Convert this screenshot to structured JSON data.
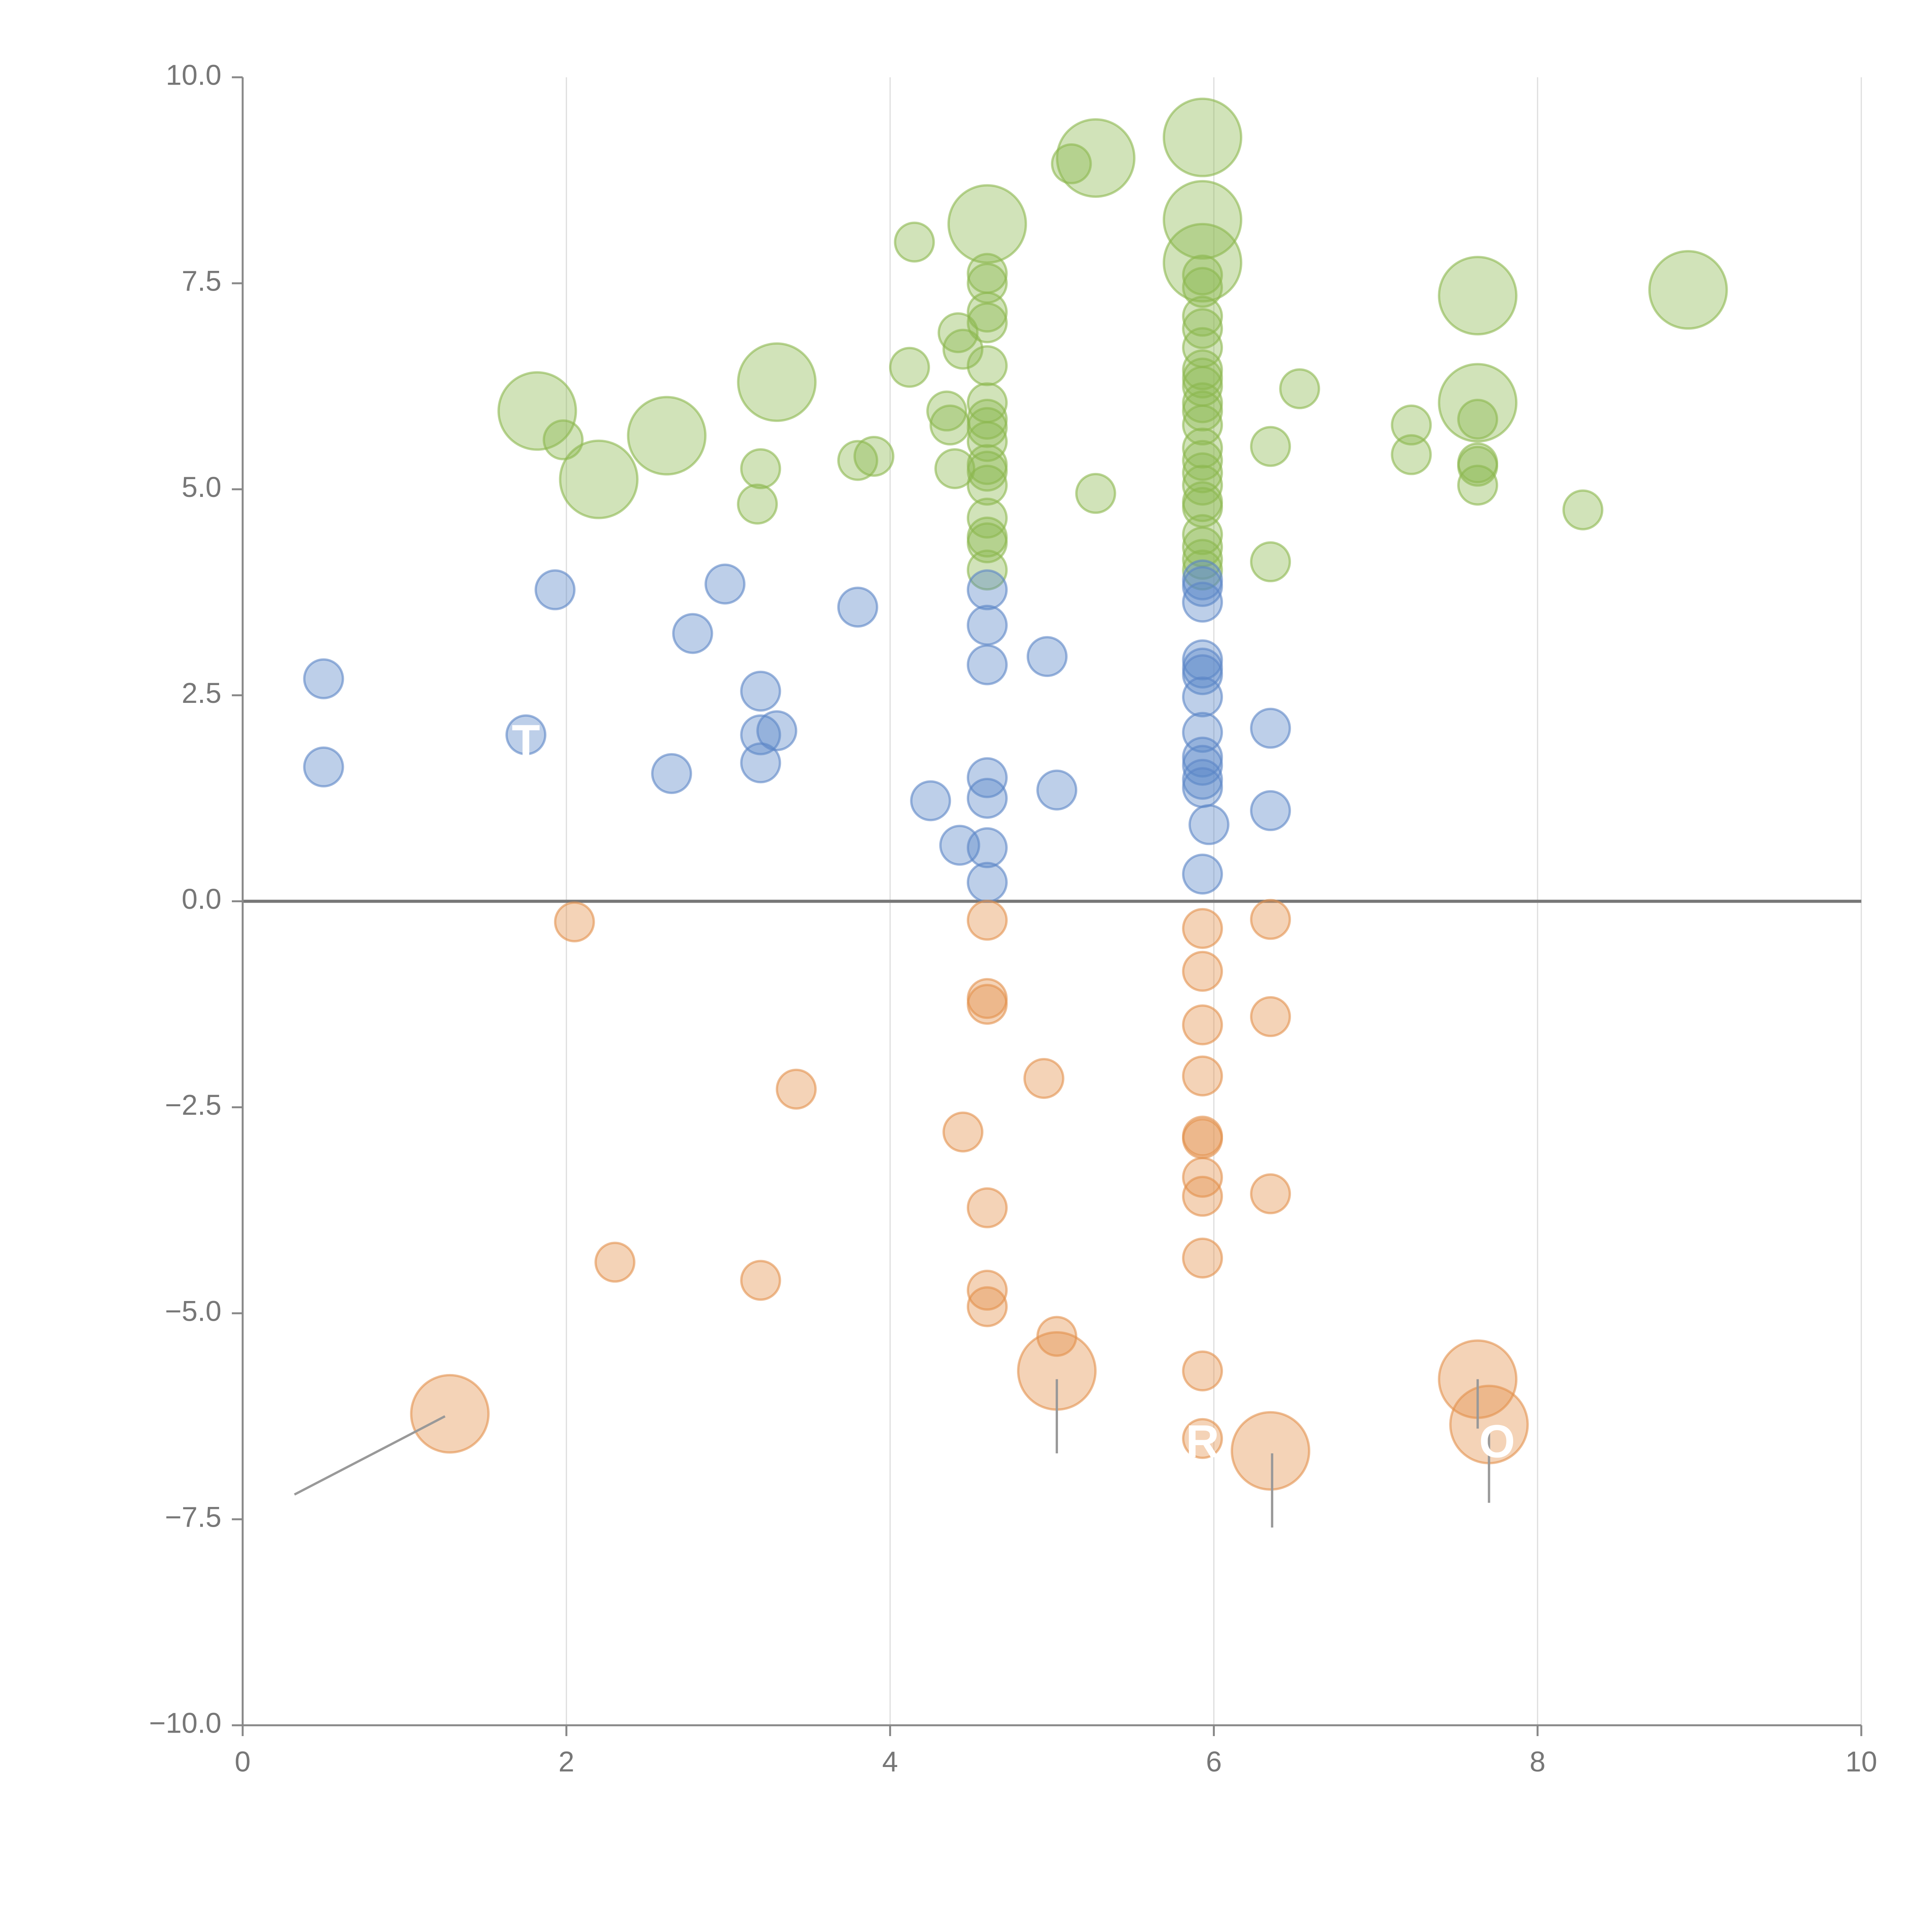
{
  "chart_data": {
    "type": "scatter",
    "title": "",
    "xlabel": "",
    "ylabel": "",
    "xlim": [
      0,
      10
    ],
    "ylim": [
      -10,
      10
    ],
    "x_ticks": [
      0,
      2,
      4,
      6,
      8,
      10
    ],
    "y_ticks": [
      -10,
      -7.5,
      -5,
      -2.5,
      0,
      2.5,
      5,
      7.5,
      10
    ],
    "x_tick_labels": [
      "0",
      "2",
      "4",
      "6",
      "8",
      "10"
    ],
    "y_tick_labels": [
      "−10.0",
      "−7.5",
      "−5.0",
      "−2.5",
      "0.0",
      "2.5",
      "5.0",
      "7.5",
      "10.0"
    ],
    "grid": "vertical",
    "colors": {
      "green": "#8cb84f",
      "blue": "#5b86c7",
      "orange": "#e3914c",
      "axis": "#888888",
      "zero_line": "#777777",
      "grid": "#dddddd"
    },
    "series": [
      {
        "name": "green",
        "color": "#8cb84f",
        "points": [
          {
            "x": 1.82,
            "y": 5.95,
            "size": 3
          },
          {
            "x": 1.98,
            "y": 5.6,
            "size": 1
          },
          {
            "x": 2.2,
            "y": 5.12,
            "size": 3
          },
          {
            "x": 2.62,
            "y": 5.65,
            "size": 3
          },
          {
            "x": 3.2,
            "y": 5.25,
            "size": 1
          },
          {
            "x": 3.18,
            "y": 4.82,
            "size": 1
          },
          {
            "x": 3.3,
            "y": 6.3,
            "size": 3
          },
          {
            "x": 3.8,
            "y": 5.35,
            "size": 1
          },
          {
            "x": 3.9,
            "y": 5.4,
            "size": 1
          },
          {
            "x": 4.12,
            "y": 6.48,
            "size": 1
          },
          {
            "x": 4.15,
            "y": 8.0,
            "size": 1
          },
          {
            "x": 4.35,
            "y": 5.95,
            "size": 1
          },
          {
            "x": 4.37,
            "y": 5.78,
            "size": 1
          },
          {
            "x": 4.4,
            "y": 5.25,
            "size": 1
          },
          {
            "x": 4.42,
            "y": 6.9,
            "size": 1
          },
          {
            "x": 4.45,
            "y": 6.7,
            "size": 1
          },
          {
            "x": 4.6,
            "y": 8.22,
            "size": 3
          },
          {
            "x": 4.6,
            "y": 7.62,
            "size": 1
          },
          {
            "x": 4.6,
            "y": 7.5,
            "size": 1
          },
          {
            "x": 4.6,
            "y": 7.15,
            "size": 1
          },
          {
            "x": 4.6,
            "y": 7.02,
            "size": 1
          },
          {
            "x": 4.6,
            "y": 6.5,
            "size": 1
          },
          {
            "x": 4.6,
            "y": 6.05,
            "size": 1
          },
          {
            "x": 4.6,
            "y": 5.85,
            "size": 1
          },
          {
            "x": 4.6,
            "y": 5.75,
            "size": 1
          },
          {
            "x": 4.6,
            "y": 5.58,
            "size": 1
          },
          {
            "x": 4.6,
            "y": 5.3,
            "size": 1
          },
          {
            "x": 4.6,
            "y": 5.22,
            "size": 1
          },
          {
            "x": 4.6,
            "y": 5.05,
            "size": 1
          },
          {
            "x": 4.6,
            "y": 4.65,
            "size": 1
          },
          {
            "x": 4.6,
            "y": 4.42,
            "size": 1
          },
          {
            "x": 4.6,
            "y": 4.35,
            "size": 1
          },
          {
            "x": 4.6,
            "y": 4.02,
            "size": 1
          },
          {
            "x": 5.12,
            "y": 8.95,
            "size": 1
          },
          {
            "x": 5.27,
            "y": 9.02,
            "size": 3
          },
          {
            "x": 5.27,
            "y": 4.95,
            "size": 1
          },
          {
            "x": 5.93,
            "y": 9.27,
            "size": 3
          },
          {
            "x": 5.93,
            "y": 8.27,
            "size": 3
          },
          {
            "x": 5.93,
            "y": 7.75,
            "size": 3
          },
          {
            "x": 5.93,
            "y": 7.6,
            "size": 1
          },
          {
            "x": 5.93,
            "y": 7.45,
            "size": 1
          },
          {
            "x": 5.93,
            "y": 7.1,
            "size": 1
          },
          {
            "x": 5.93,
            "y": 6.95,
            "size": 1
          },
          {
            "x": 5.93,
            "y": 6.72,
            "size": 1
          },
          {
            "x": 5.93,
            "y": 6.45,
            "size": 1
          },
          {
            "x": 5.93,
            "y": 6.35,
            "size": 1
          },
          {
            "x": 5.93,
            "y": 6.25,
            "size": 1
          },
          {
            "x": 5.93,
            "y": 6.05,
            "size": 1
          },
          {
            "x": 5.93,
            "y": 5.95,
            "size": 1
          },
          {
            "x": 5.93,
            "y": 5.78,
            "size": 1
          },
          {
            "x": 5.93,
            "y": 5.5,
            "size": 1
          },
          {
            "x": 5.93,
            "y": 5.35,
            "size": 1
          },
          {
            "x": 5.93,
            "y": 5.2,
            "size": 1
          },
          {
            "x": 5.93,
            "y": 5.05,
            "size": 1
          },
          {
            "x": 5.93,
            "y": 4.85,
            "size": 1
          },
          {
            "x": 5.93,
            "y": 4.78,
            "size": 1
          },
          {
            "x": 5.93,
            "y": 4.45,
            "size": 1
          },
          {
            "x": 5.93,
            "y": 4.3,
            "size": 1
          },
          {
            "x": 5.93,
            "y": 4.15,
            "size": 1
          },
          {
            "x": 5.93,
            "y": 4.02,
            "size": 1
          },
          {
            "x": 6.35,
            "y": 5.52,
            "size": 1
          },
          {
            "x": 6.35,
            "y": 4.12,
            "size": 1
          },
          {
            "x": 6.53,
            "y": 6.22,
            "size": 1
          },
          {
            "x": 7.22,
            "y": 5.78,
            "size": 1
          },
          {
            "x": 7.22,
            "y": 5.42,
            "size": 1
          },
          {
            "x": 7.63,
            "y": 7.35,
            "size": 3
          },
          {
            "x": 7.63,
            "y": 6.05,
            "size": 3
          },
          {
            "x": 7.63,
            "y": 5.85,
            "size": 1
          },
          {
            "x": 7.63,
            "y": 5.32,
            "size": 1
          },
          {
            "x": 7.63,
            "y": 5.28,
            "size": 1
          },
          {
            "x": 7.63,
            "y": 5.05,
            "size": 1
          },
          {
            "x": 8.28,
            "y": 4.75,
            "size": 1
          },
          {
            "x": 8.93,
            "y": 7.42,
            "size": 3
          }
        ]
      },
      {
        "name": "blue",
        "color": "#5b86c7",
        "points": [
          {
            "x": 0.5,
            "y": 2.7,
            "size": 1
          },
          {
            "x": 0.5,
            "y": 1.63,
            "size": 1
          },
          {
            "x": 1.75,
            "y": 2.02,
            "size": 1
          },
          {
            "x": 1.93,
            "y": 3.78,
            "size": 1
          },
          {
            "x": 2.65,
            "y": 1.55,
            "size": 1
          },
          {
            "x": 2.78,
            "y": 3.25,
            "size": 1
          },
          {
            "x": 2.98,
            "y": 3.85,
            "size": 1
          },
          {
            "x": 3.2,
            "y": 2.55,
            "size": 1
          },
          {
            "x": 3.2,
            "y": 2.02,
            "size": 1
          },
          {
            "x": 3.2,
            "y": 1.68,
            "size": 1
          },
          {
            "x": 3.3,
            "y": 2.07,
            "size": 1
          },
          {
            "x": 3.8,
            "y": 3.57,
            "size": 1
          },
          {
            "x": 4.25,
            "y": 1.22,
            "size": 1
          },
          {
            "x": 4.43,
            "y": 0.68,
            "size": 1
          },
          {
            "x": 4.6,
            "y": 3.78,
            "size": 1
          },
          {
            "x": 4.6,
            "y": 3.35,
            "size": 1
          },
          {
            "x": 4.6,
            "y": 2.87,
            "size": 1
          },
          {
            "x": 4.6,
            "y": 1.5,
            "size": 1
          },
          {
            "x": 4.6,
            "y": 1.25,
            "size": 1
          },
          {
            "x": 4.6,
            "y": 0.65,
            "size": 1
          },
          {
            "x": 4.6,
            "y": 0.23,
            "size": 1
          },
          {
            "x": 4.97,
            "y": 2.97,
            "size": 1
          },
          {
            "x": 5.03,
            "y": 1.35,
            "size": 1
          },
          {
            "x": 5.93,
            "y": 3.9,
            "size": 1
          },
          {
            "x": 5.93,
            "y": 3.82,
            "size": 1
          },
          {
            "x": 5.93,
            "y": 3.63,
            "size": 1
          },
          {
            "x": 5.93,
            "y": 2.93,
            "size": 1
          },
          {
            "x": 5.93,
            "y": 2.83,
            "size": 1
          },
          {
            "x": 5.93,
            "y": 2.75,
            "size": 1
          },
          {
            "x": 5.93,
            "y": 2.48,
            "size": 1
          },
          {
            "x": 5.93,
            "y": 2.05,
            "size": 1
          },
          {
            "x": 5.93,
            "y": 1.75,
            "size": 1
          },
          {
            "x": 5.93,
            "y": 1.65,
            "size": 1
          },
          {
            "x": 5.93,
            "y": 1.48,
            "size": 1
          },
          {
            "x": 5.93,
            "y": 1.38,
            "size": 1
          },
          {
            "x": 5.97,
            "y": 0.93,
            "size": 1
          },
          {
            "x": 5.93,
            "y": 0.33,
            "size": 1
          },
          {
            "x": 6.35,
            "y": 2.1,
            "size": 1
          },
          {
            "x": 6.35,
            "y": 1.1,
            "size": 1
          }
        ]
      },
      {
        "name": "orange",
        "color": "#e3914c",
        "points": [
          {
            "x": 2.05,
            "y": -0.25,
            "size": 1
          },
          {
            "x": 2.3,
            "y": -4.38,
            "size": 1
          },
          {
            "x": 3.2,
            "y": -4.6,
            "size": 1
          },
          {
            "x": 3.42,
            "y": -2.28,
            "size": 1
          },
          {
            "x": 4.45,
            "y": -2.8,
            "size": 1
          },
          {
            "x": 4.6,
            "y": -0.23,
            "size": 1
          },
          {
            "x": 4.6,
            "y": -1.18,
            "size": 1
          },
          {
            "x": 4.6,
            "y": -1.25,
            "size": 1
          },
          {
            "x": 4.6,
            "y": -3.72,
            "size": 1
          },
          {
            "x": 4.6,
            "y": -4.72,
            "size": 1
          },
          {
            "x": 4.6,
            "y": -4.92,
            "size": 1
          },
          {
            "x": 4.95,
            "y": -2.15,
            "size": 1
          },
          {
            "x": 5.03,
            "y": -5.28,
            "size": 1
          },
          {
            "x": 5.03,
            "y": -5.7,
            "size": 3
          },
          {
            "x": 5.93,
            "y": -0.33,
            "size": 1
          },
          {
            "x": 5.93,
            "y": -0.85,
            "size": 1
          },
          {
            "x": 5.93,
            "y": -1.5,
            "size": 1
          },
          {
            "x": 5.93,
            "y": -2.12,
            "size": 1
          },
          {
            "x": 5.93,
            "y": -2.85,
            "size": 1
          },
          {
            "x": 5.93,
            "y": -2.88,
            "size": 1
          },
          {
            "x": 5.93,
            "y": -3.35,
            "size": 1
          },
          {
            "x": 5.93,
            "y": -3.58,
            "size": 1
          },
          {
            "x": 5.93,
            "y": -4.33,
            "size": 1
          },
          {
            "x": 5.93,
            "y": -5.7,
            "size": 1
          },
          {
            "x": 5.93,
            "y": -6.52,
            "size": 1
          },
          {
            "x": 6.35,
            "y": -0.22,
            "size": 1
          },
          {
            "x": 6.35,
            "y": -1.4,
            "size": 1
          },
          {
            "x": 6.35,
            "y": -3.55,
            "size": 1
          },
          {
            "x": 6.35,
            "y": -6.67,
            "size": 3
          },
          {
            "x": 7.63,
            "y": -5.8,
            "size": 3
          },
          {
            "x": 7.7,
            "y": -6.35,
            "size": 3
          },
          {
            "x": 1.28,
            "y": -6.22,
            "size": 3
          }
        ]
      }
    ],
    "annotation_lines": [
      {
        "from": [
          0.32,
          -7.2
        ],
        "to": [
          1.25,
          -6.25
        ]
      },
      {
        "from": [
          5.03,
          -5.8
        ],
        "to": [
          5.03,
          -6.7
        ]
      },
      {
        "from": [
          6.36,
          -6.7
        ],
        "to": [
          6.36,
          -7.6
        ]
      },
      {
        "from": [
          7.7,
          -6.4
        ],
        "to": [
          7.7,
          -7.3
        ]
      },
      {
        "from": [
          7.63,
          -5.8
        ],
        "to": [
          7.63,
          -6.4
        ]
      }
    ],
    "callouts": [
      {
        "text": "T",
        "x": 1.75,
        "y": 1.9
      },
      {
        "text": "R",
        "x": 5.93,
        "y": -6.6
      },
      {
        "text": "O",
        "x": 7.75,
        "y": -6.6
      }
    ]
  }
}
